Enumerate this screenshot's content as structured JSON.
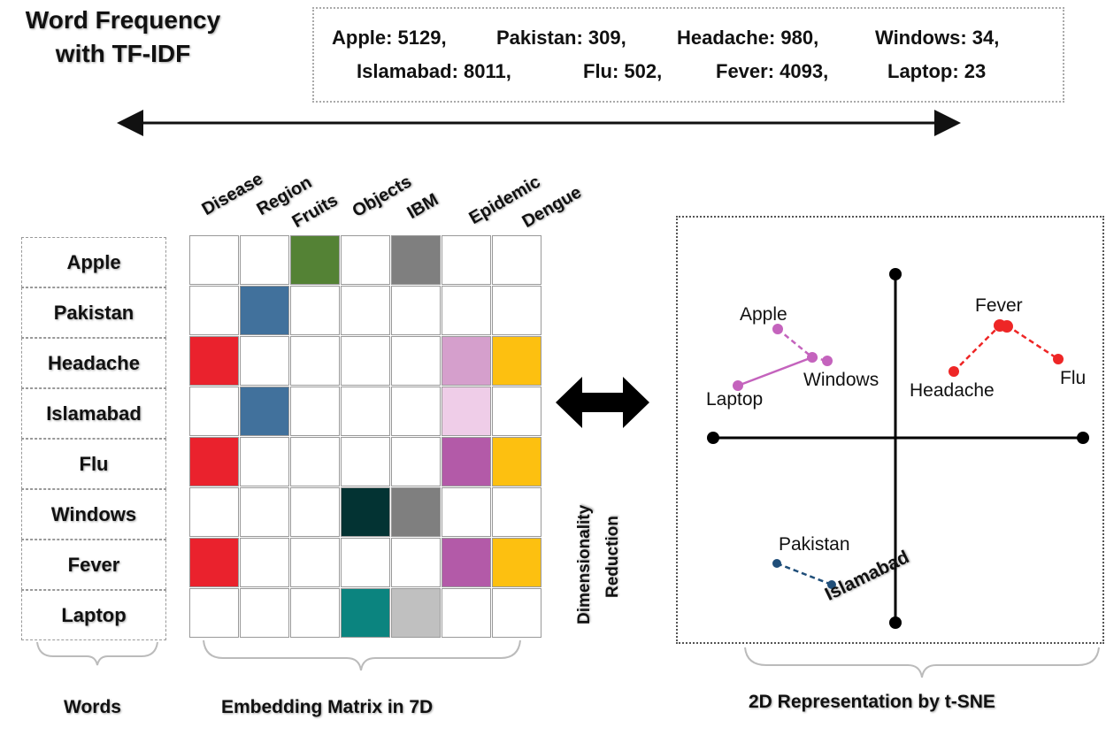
{
  "title": "Word Frequency with TF-IDF",
  "frequencies": [
    {
      "word": "Apple",
      "count": 5129,
      "text": "Apple: 5129,"
    },
    {
      "word": "Pakistan",
      "count": 309,
      "text": "Pakistan: 309,"
    },
    {
      "word": "Headache",
      "count": 980,
      "text": "Headache: 980,"
    },
    {
      "word": "Windows",
      "count": 34,
      "text": "Windows: 34,"
    },
    {
      "word": "Islamabad",
      "count": 8011,
      "text": "Islamabad: 8011,"
    },
    {
      "word": "Flu",
      "count": 502,
      "text": "Flu: 502,"
    },
    {
      "word": "Fever",
      "count": 4093,
      "text": "Fever: 4093,"
    },
    {
      "word": "Laptop",
      "count": 23,
      "text": "Laptop: 23"
    }
  ],
  "dimensions": [
    "Disease",
    "Region",
    "Fruits",
    "Objects",
    "IBM",
    "Epidemic",
    "Dengue"
  ],
  "words": [
    "Apple",
    "Pakistan",
    "Headache",
    "Islamabad",
    "Flu",
    "Windows",
    "Fever",
    "Laptop"
  ],
  "matrix_colors": [
    [
      "",
      "",
      "#548235",
      "",
      "#7f7f7f",
      "",
      ""
    ],
    [
      "",
      "#41719c",
      "",
      "",
      "",
      "",
      ""
    ],
    [
      "#ea222d",
      "",
      "",
      "",
      "",
      "#d59fcc",
      "#fdc010"
    ],
    [
      "",
      "#41719c",
      "",
      "",
      "",
      "#efcde8",
      ""
    ],
    [
      "#ea222d",
      "",
      "",
      "",
      "",
      "#b35aa8",
      "#fdc010"
    ],
    [
      "",
      "",
      "",
      "#033333",
      "#7f7f7f",
      "",
      ""
    ],
    [
      "#ea222d",
      "",
      "",
      "",
      "",
      "#b35aa8",
      "#fdc010"
    ],
    [
      "",
      "",
      "",
      "#0b847f",
      "#c0c0c0",
      "",
      ""
    ]
  ],
  "dimensionality_reduction": [
    "Dimensionality",
    "Reduction"
  ],
  "tsne": {
    "groups": [
      {
        "color": "#c463bd",
        "points": [
          "Apple",
          "Windows",
          "Laptop"
        ]
      },
      {
        "color": "#ee2626",
        "points": [
          "Fever",
          "Headache",
          "Flu"
        ]
      },
      {
        "color": "#1f4e79",
        "points": [
          "Pakistan",
          "Islamabad"
        ]
      }
    ],
    "labels": {
      "apple": "Apple",
      "windows": "Windows",
      "laptop": "Laptop",
      "fever": "Fever",
      "headache": "Headache",
      "flu": "Flu",
      "pakistan": "Pakistan",
      "islamabad": "Islamabad"
    }
  },
  "bottom_labels": {
    "words": "Words",
    "matrix": "Embedding Matrix in 7D",
    "tsne": "2D Representation by t-SNE"
  }
}
